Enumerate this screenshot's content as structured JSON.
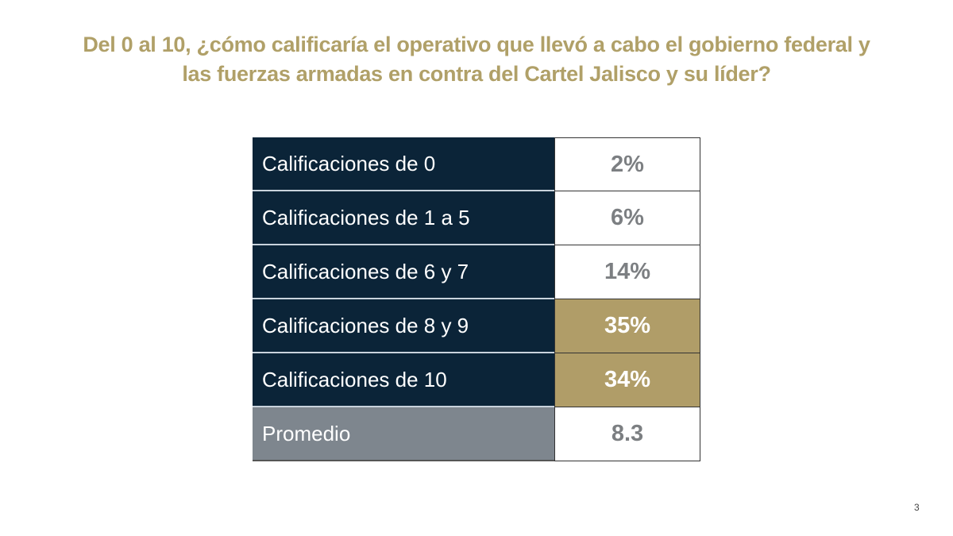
{
  "title": "Del 0 al 10, ¿cómo calificaría el operativo que llevó a cabo el gobierno federal y las fuerzas armadas en contra del Cartel Jalisco y su líder?",
  "rows": [
    {
      "label": "Calificaciones de 0",
      "value": "2%",
      "highlight": false
    },
    {
      "label": "Calificaciones de 1 a 5",
      "value": "6%",
      "highlight": false
    },
    {
      "label": "Calificaciones de 6 y 7",
      "value": "14%",
      "highlight": false
    },
    {
      "label": "Calificaciones de 8 y 9",
      "value": "35%",
      "highlight": true
    },
    {
      "label": "Calificaciones de 10",
      "value": "34%",
      "highlight": true
    },
    {
      "label": "Promedio",
      "value": "8.3",
      "highlight": false
    }
  ],
  "page_number": "3",
  "colors": {
    "title": "#b0a068",
    "label_bg": "#0b2438",
    "average_bg": "#7e868e",
    "highlight_bg": "#b09d68",
    "value_text": "#7c7f82"
  },
  "chart_data": {
    "type": "table",
    "title": "Del 0 al 10, ¿cómo calificaría el operativo que llevó a cabo el gobierno federal y las fuerzas armadas en contra del Cartel Jalisco y su líder?",
    "categories": [
      "Calificaciones de 0",
      "Calificaciones de 1 a 5",
      "Calificaciones de 6 y 7",
      "Calificaciones de 8 y 9",
      "Calificaciones de 10"
    ],
    "values": [
      2,
      6,
      14,
      35,
      34
    ],
    "unit": "%",
    "average_label": "Promedio",
    "average": 8.3
  }
}
